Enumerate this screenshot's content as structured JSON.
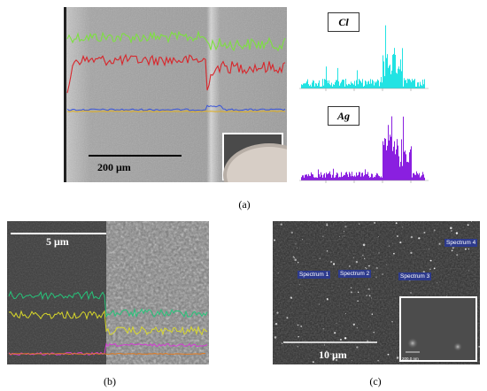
{
  "panel_a": {
    "caption": "(a)",
    "scale_label": "200 μm",
    "spectra": [
      {
        "element": "Cl",
        "color": "#22e3e3"
      },
      {
        "element": "Ag",
        "color": "#8a1fe0"
      }
    ],
    "profile_colors": [
      "#7de040",
      "#d8262b",
      "#3a55d8",
      "#e0b020"
    ]
  },
  "panel_b": {
    "caption": "(b)",
    "scale_label": "5 μm",
    "profile_colors": [
      "#27c47a",
      "#d8d82a",
      "#d43bd4",
      "#e07a20"
    ]
  },
  "panel_c": {
    "caption": "(c)",
    "scale_label": "10 μm",
    "spectrum_labels": [
      "Spectrum 1",
      "Spectrum 2",
      "Spectrum 3",
      "Spectrum 4"
    ],
    "inset_scale": "200.0 nm"
  }
}
